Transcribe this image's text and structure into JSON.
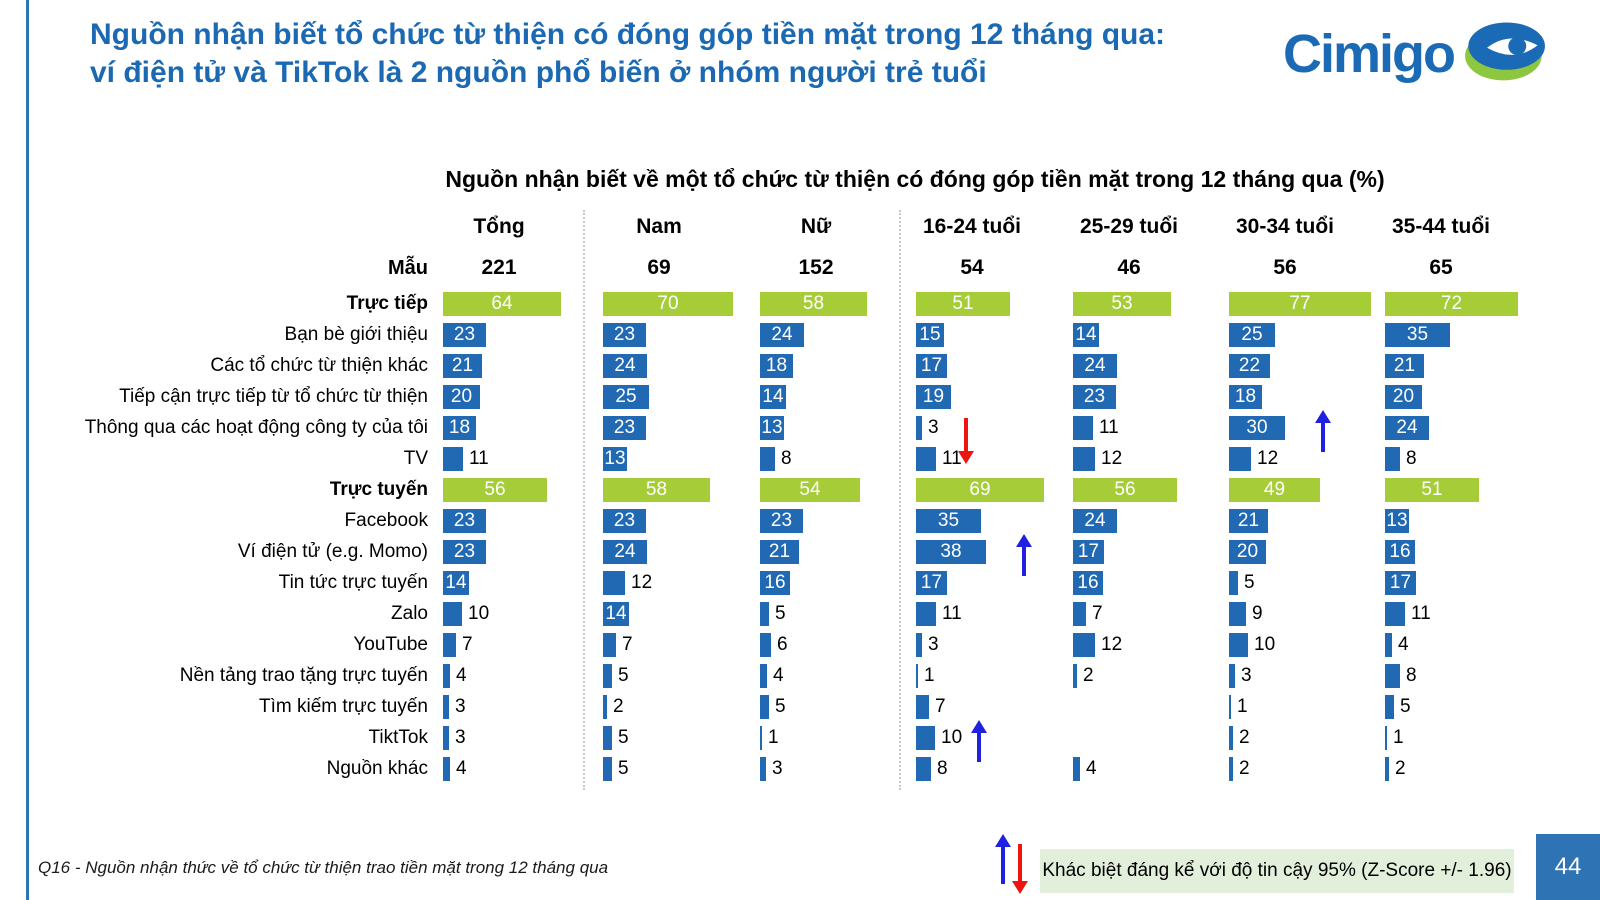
{
  "page": {
    "title": "Nguồn nhận biết tổ chức từ thiện có đóng góp tiền mặt trong 12 tháng qua: ví điện tử và TikTok là 2 nguồn phổ biến ở nhóm người trẻ tuổi",
    "logo_text": "Cimigo",
    "footer_note": "Q16 - Nguồn nhận thức về tổ chức từ thiện trao tiền mặt trong 12 tháng qua",
    "page_number": "44"
  },
  "legend": {
    "text": "Khác biệt đáng kể với độ tin cậy 95% (Z-Score +/- 1.96)"
  },
  "chart_data": {
    "type": "bar",
    "title": "Nguồn nhận biết về một tổ chức từ thiện có đóng góp tiền mặt trong 12 tháng qua (%)",
    "orientation": "horizontal",
    "unit": "%",
    "sample_label": "Mẫu",
    "columns": [
      "Tổng",
      "Nam",
      "Nữ",
      "16-24 tuổi",
      "25-29 tuổi",
      "30-34 tuổi",
      "35-44 tuổi"
    ],
    "samples": [
      221,
      69,
      152,
      54,
      46,
      56,
      65
    ],
    "rows": [
      {
        "label": "Trực tiếp",
        "bold": true,
        "subtotal": true,
        "values": [
          64,
          70,
          58,
          51,
          53,
          77,
          72
        ]
      },
      {
        "label": "Bạn bè giới thiệu",
        "bold": false,
        "subtotal": false,
        "values": [
          23,
          23,
          24,
          15,
          14,
          25,
          35
        ]
      },
      {
        "label": "Các tổ chức từ thiện khác",
        "bold": false,
        "subtotal": false,
        "values": [
          21,
          24,
          18,
          17,
          24,
          22,
          21
        ]
      },
      {
        "label": "Tiếp cận trực tiếp từ tổ chức từ thiện",
        "bold": false,
        "subtotal": false,
        "values": [
          20,
          25,
          14,
          19,
          23,
          18,
          20
        ]
      },
      {
        "label": "Thông qua các hoạt động công ty của tôi",
        "bold": false,
        "subtotal": false,
        "values": [
          18,
          23,
          13,
          3,
          11,
          30,
          24
        ]
      },
      {
        "label": "TV",
        "bold": false,
        "subtotal": false,
        "values": [
          11,
          13,
          8,
          11,
          12,
          12,
          8
        ]
      },
      {
        "label": "Trực tuyến",
        "bold": true,
        "subtotal": true,
        "values": [
          56,
          58,
          54,
          69,
          56,
          49,
          51
        ]
      },
      {
        "label": "Facebook",
        "bold": false,
        "subtotal": false,
        "values": [
          23,
          23,
          23,
          35,
          24,
          21,
          13
        ]
      },
      {
        "label": "Ví điện tử (e.g. Momo)",
        "bold": false,
        "subtotal": false,
        "values": [
          23,
          24,
          21,
          38,
          17,
          20,
          16
        ]
      },
      {
        "label": "Tin tức trực tuyến",
        "bold": false,
        "subtotal": false,
        "values": [
          14,
          12,
          16,
          17,
          16,
          5,
          17
        ]
      },
      {
        "label": "Zalo",
        "bold": false,
        "subtotal": false,
        "values": [
          10,
          14,
          5,
          11,
          7,
          9,
          11
        ]
      },
      {
        "label": "YouTube",
        "bold": false,
        "subtotal": false,
        "values": [
          7,
          7,
          6,
          3,
          12,
          10,
          4
        ]
      },
      {
        "label": "Nền tảng trao tặng trực tuyến",
        "bold": false,
        "subtotal": false,
        "values": [
          4,
          5,
          4,
          1,
          2,
          3,
          8
        ]
      },
      {
        "label": "Tìm kiếm trực tuyến",
        "bold": false,
        "subtotal": false,
        "values": [
          3,
          2,
          5,
          7,
          null,
          1,
          5
        ]
      },
      {
        "label": "TiktTok",
        "bold": false,
        "subtotal": false,
        "values": [
          3,
          5,
          1,
          10,
          null,
          2,
          1
        ]
      },
      {
        "label": "Nguồn khác",
        "bold": false,
        "subtotal": false,
        "values": [
          4,
          5,
          3,
          8,
          4,
          2,
          2
        ]
      }
    ],
    "significance_arrows": [
      {
        "row": 4,
        "col": 3,
        "direction": "down",
        "color": "#ee1510"
      },
      {
        "row": 4,
        "col": 5,
        "direction": "up",
        "color": "#2020e0"
      },
      {
        "row": 8,
        "col": 3,
        "direction": "up",
        "color": "#2020e0"
      },
      {
        "row": 14,
        "col": 3,
        "direction": "up",
        "color": "#2020e0"
      }
    ],
    "colors": {
      "bar": "#2169b3",
      "subtotal_bar": "#a6cd38",
      "title_blue": "#1b69b2",
      "logo_green": "#8dc63f",
      "legend_bg": "#e2efda",
      "page_badge_bg": "#2e74b5"
    },
    "xlim": [
      0,
      100
    ],
    "legend_position": "bottom"
  }
}
